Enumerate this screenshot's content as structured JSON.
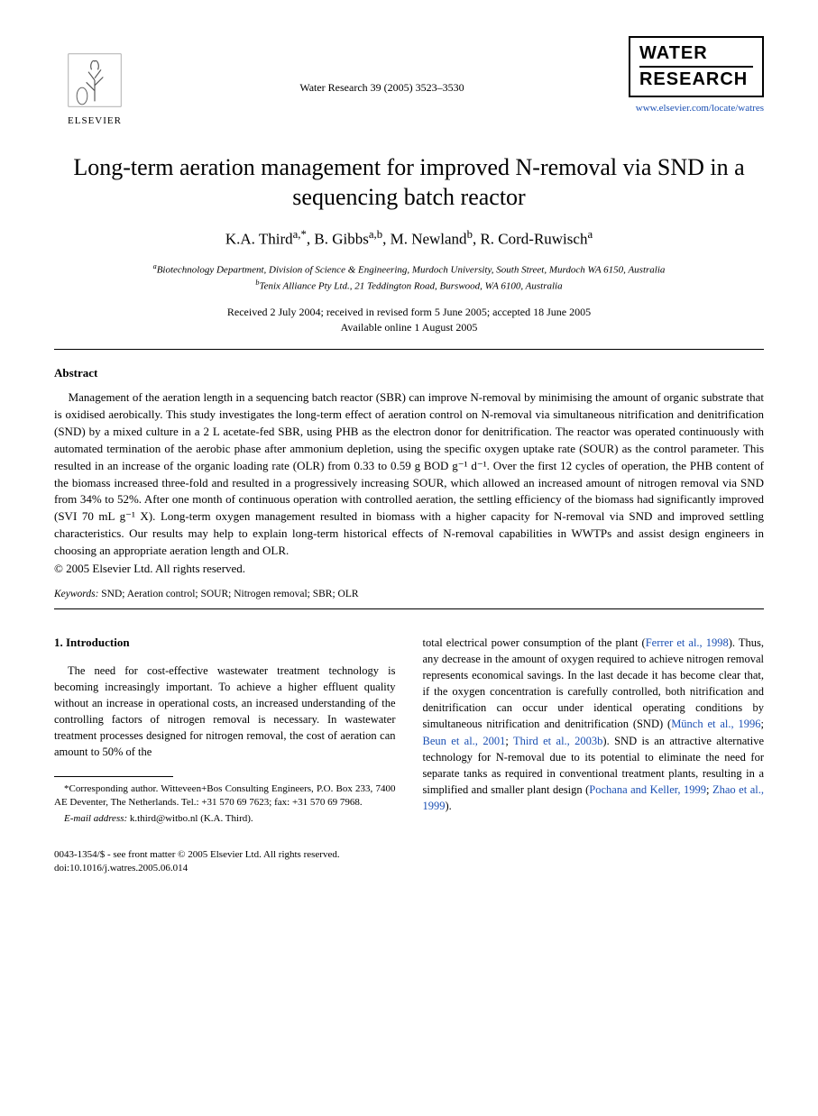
{
  "publisher": {
    "name": "ELSEVIER"
  },
  "journal_ref": "Water Research 39 (2005) 3523–3530",
  "journal_logo": {
    "line1": "WATER",
    "line2": "RESEARCH"
  },
  "journal_url": "www.elsevier.com/locate/watres",
  "title": "Long-term aeration management for improved N-removal via SND in a sequencing batch reactor",
  "authors_html": "K.A. Third<sup>a,*</sup>, B. Gibbs<sup>a,b</sup>, M. Newland<sup>b</sup>, R. Cord-Ruwisch<sup>a</sup>",
  "affiliations": {
    "a": "Biotechnology Department, Division of Science & Engineering, Murdoch University, South Street, Murdoch WA 6150, Australia",
    "b": "Tenix Alliance Pty Ltd., 21 Teddington Road, Burswood, WA 6100, Australia"
  },
  "dates": {
    "received_line": "Received 2 July 2004; received in revised form 5 June 2005; accepted 18 June 2005",
    "online_line": "Available online 1 August 2005"
  },
  "abstract": {
    "heading": "Abstract",
    "body": "Management of the aeration length in a sequencing batch reactor (SBR) can improve N-removal by minimising the amount of organic substrate that is oxidised aerobically. This study investigates the long-term effect of aeration control on N-removal via simultaneous nitrification and denitrification (SND) by a mixed culture in a 2 L acetate-fed SBR, using PHB as the electron donor for denitrification. The reactor was operated continuously with automated termination of the aerobic phase after ammonium depletion, using the specific oxygen uptake rate (SOUR) as the control parameter. This resulted in an increase of the organic loading rate (OLR) from 0.33 to 0.59 g BOD g⁻¹ d⁻¹. Over the first 12 cycles of operation, the PHB content of the biomass increased three-fold and resulted in a progressively increasing SOUR, which allowed an increased amount of nitrogen removal via SND from 34% to 52%. After one month of continuous operation with controlled aeration, the settling efficiency of the biomass had significantly improved (SVI 70 mL g⁻¹ X). Long-term oxygen management resulted in biomass with a higher capacity for N-removal via SND and improved settling characteristics. Our results may help to explain long-term historical effects of N-removal capabilities in WWTPs and assist design engineers in choosing an appropriate aeration length and OLR.",
    "copyright": "© 2005 Elsevier Ltd. All rights reserved."
  },
  "keywords": {
    "label": "Keywords:",
    "value": "SND; Aeration control; SOUR; Nitrogen removal; SBR; OLR"
  },
  "body": {
    "section1": {
      "heading": "1. Introduction",
      "col1_p1": "The need for cost-effective wastewater treatment technology is becoming increasingly important. To achieve a higher effluent quality without an increase in operational costs, an increased understanding of the controlling factors of nitrogen removal is necessary. In wastewater treatment processes designed for nitrogen removal, the cost of aeration can amount to 50% of the",
      "col2_p1_pre": "total electrical power consumption of the plant (",
      "col2_cite1": "Ferrer et al., 1998",
      "col2_p1_post1": "). Thus, any decrease in the amount of oxygen required to achieve nitrogen removal represents economical savings. In the last decade it has become clear that, if the oxygen concentration is carefully controlled, both nitrification and denitrification can occur under identical operating conditions by simultaneous nitrification and denitrification (SND) (",
      "col2_cite2": "Münch et al., 1996",
      "col2_sep1": "; ",
      "col2_cite3": "Beun et al., 2001",
      "col2_sep2": "; ",
      "col2_cite4": "Third et al., 2003b",
      "col2_p1_post2": "). SND is an attractive alternative technology for N-removal due to its potential to eliminate the need for separate tanks as required in conventional treatment plants, resulting in a simplified and smaller plant design (",
      "col2_cite5": "Pochana and Keller, 1999",
      "col2_sep3": "; ",
      "col2_cite6": "Zhao et al., 1999",
      "col2_p1_post3": ")."
    }
  },
  "footnote": {
    "corresponding": "*Corresponding author. Witteveen+Bos Consulting Engineers, P.O. Box 233, 7400 AE Deventer, The Netherlands. Tel.: +31 570 69 7623; fax: +31 570 69 7968.",
    "email_label": "E-mail address:",
    "email_value": "k.third@witbo.nl (K.A. Third)."
  },
  "footer": {
    "line1": "0043-1354/$ - see front matter © 2005 Elsevier Ltd. All rights reserved.",
    "line2": "doi:10.1016/j.watres.2005.06.014"
  },
  "colors": {
    "text": "#000000",
    "background": "#ffffff",
    "link": "#1a4fb3"
  },
  "typography": {
    "title_fontsize": 26,
    "authors_fontsize": 17,
    "body_fontsize": 12.5,
    "abstract_fontsize": 13,
    "footnote_fontsize": 11,
    "font_family": "Georgia, Times New Roman, serif"
  }
}
